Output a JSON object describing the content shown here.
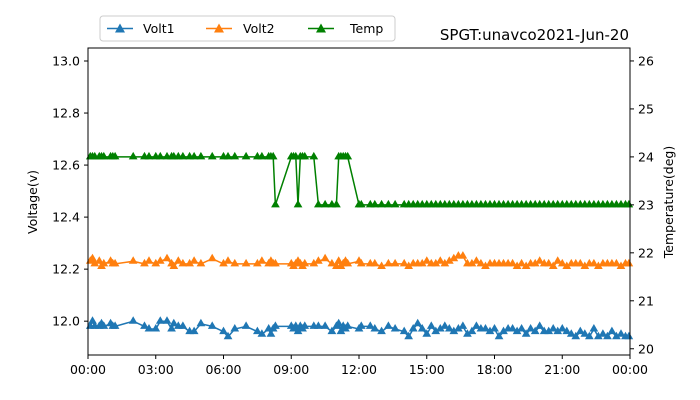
{
  "chart_data": {
    "type": "line",
    "title": "SPGT:unavco2021-Jun-20",
    "xlabel": "",
    "ylabel": "Voltage(v)",
    "y2label": "Temperature(deg)",
    "x_ticks": [
      "00:00",
      "03:00",
      "06:00",
      "09:00",
      "12:00",
      "15:00",
      "18:00",
      "21:00",
      "00:00"
    ],
    "x_range_hours": [
      0,
      24
    ],
    "ylim": [
      11.87,
      13.05
    ],
    "y_ticks": [
      "12.0",
      "12.2",
      "12.4",
      "12.6",
      "12.8",
      "13.0"
    ],
    "y2lim": [
      19.87,
      26.27
    ],
    "y2_ticks": [
      "20",
      "21",
      "22",
      "23",
      "24",
      "25",
      "26"
    ],
    "grid": false,
    "legend_position": "top-left, above plot",
    "x_hours": [
      0.1,
      0.2,
      0.3,
      0.5,
      0.6,
      0.7,
      1.0,
      1.1,
      1.2,
      2.0,
      2.5,
      2.7,
      3.0,
      3.2,
      3.5,
      3.7,
      3.8,
      4.0,
      4.2,
      4.5,
      4.7,
      5.0,
      5.5,
      6.0,
      6.2,
      6.5,
      7.0,
      7.5,
      7.7,
      8.0,
      8.1,
      8.2,
      8.3,
      9.0,
      9.1,
      9.2,
      9.3,
      9.4,
      9.5,
      9.6,
      10.0,
      10.2,
      10.5,
      10.8,
      11.0,
      11.1,
      11.2,
      11.3,
      11.4,
      11.5,
      12.0,
      12.1,
      12.5,
      12.7,
      13.0,
      13.3,
      13.6,
      14.0,
      14.2,
      14.4,
      14.6,
      14.8,
      15.0,
      15.2,
      15.4,
      15.6,
      15.8,
      16.0,
      16.2,
      16.4,
      16.6,
      16.8,
      17.0,
      17.2,
      17.4,
      17.6,
      17.8,
      18.0,
      18.2,
      18.4,
      18.6,
      18.8,
      19.0,
      19.2,
      19.4,
      19.6,
      19.8,
      20.0,
      20.2,
      20.4,
      20.6,
      20.8,
      21.0,
      21.2,
      21.4,
      21.6,
      21.8,
      22.0,
      22.2,
      22.4,
      22.6,
      22.8,
      23.0,
      23.2,
      23.4,
      23.6,
      23.8,
      23.95
    ],
    "series": [
      {
        "name": "Volt1",
        "axis": "left",
        "color": "#1f77b4",
        "marker": "triangle-up",
        "values": [
          11.98,
          12.0,
          11.98,
          11.98,
          11.99,
          11.98,
          11.99,
          11.98,
          11.98,
          12.0,
          11.98,
          11.97,
          11.97,
          12.0,
          12.0,
          11.97,
          11.99,
          11.98,
          11.98,
          11.96,
          11.96,
          11.99,
          11.98,
          11.96,
          11.94,
          11.97,
          11.98,
          11.96,
          11.95,
          11.97,
          11.95,
          11.97,
          11.98,
          11.98,
          11.97,
          11.98,
          11.96,
          11.98,
          11.97,
          11.98,
          11.98,
          11.98,
          11.98,
          11.96,
          11.98,
          11.99,
          11.96,
          11.98,
          11.97,
          11.98,
          11.97,
          11.98,
          11.98,
          11.97,
          11.96,
          11.98,
          11.97,
          11.96,
          11.94,
          11.97,
          11.99,
          11.97,
          11.95,
          11.98,
          11.96,
          11.97,
          11.98,
          11.97,
          11.96,
          11.97,
          11.98,
          11.95,
          11.96,
          11.98,
          11.97,
          11.97,
          11.96,
          11.97,
          11.94,
          11.96,
          11.97,
          11.97,
          11.96,
          11.97,
          11.95,
          11.97,
          11.96,
          11.98,
          11.96,
          11.96,
          11.97,
          11.96,
          11.97,
          11.96,
          11.95,
          11.94,
          11.96,
          11.95,
          11.94,
          11.97,
          11.94,
          11.95,
          11.94,
          11.96,
          11.94,
          11.95,
          11.94,
          11.94
        ]
      },
      {
        "name": "Volt2",
        "axis": "left",
        "color": "#ff7f0e",
        "marker": "triangle-up",
        "values": [
          12.23,
          12.24,
          12.22,
          12.23,
          12.21,
          12.22,
          12.23,
          12.22,
          12.22,
          12.23,
          12.22,
          12.23,
          12.22,
          12.23,
          12.24,
          12.22,
          12.21,
          12.23,
          12.22,
          12.22,
          12.23,
          12.22,
          12.24,
          12.22,
          12.23,
          12.22,
          12.22,
          12.22,
          12.23,
          12.22,
          12.23,
          12.22,
          12.22,
          12.22,
          12.21,
          12.22,
          12.23,
          12.22,
          12.21,
          12.22,
          12.22,
          12.23,
          12.24,
          12.22,
          12.21,
          12.23,
          12.21,
          12.22,
          12.23,
          12.22,
          12.23,
          12.22,
          12.22,
          12.22,
          12.21,
          12.22,
          12.22,
          12.22,
          12.21,
          12.22,
          12.22,
          12.22,
          12.23,
          12.22,
          12.22,
          12.23,
          12.22,
          12.23,
          12.24,
          12.25,
          12.25,
          12.22,
          12.22,
          12.23,
          12.22,
          12.21,
          12.22,
          12.22,
          12.22,
          12.22,
          12.22,
          12.22,
          12.21,
          12.22,
          12.21,
          12.22,
          12.22,
          12.23,
          12.22,
          12.22,
          12.21,
          12.23,
          12.22,
          12.21,
          12.22,
          12.22,
          12.22,
          12.21,
          12.22,
          12.22,
          12.21,
          12.22,
          12.22,
          12.22,
          12.22,
          12.21,
          12.22,
          12.22
        ]
      },
      {
        "name": "Temp",
        "axis": "right",
        "color": "#008000",
        "marker": "triangle-up",
        "values": [
          24,
          24,
          24,
          24,
          24,
          24,
          24,
          24,
          24,
          24,
          24,
          24,
          24,
          24,
          24,
          24,
          24,
          24,
          24,
          24,
          24,
          24,
          24,
          24,
          24,
          24,
          24,
          24,
          24,
          24,
          24,
          24,
          23,
          24,
          24,
          24,
          23,
          24,
          24,
          24,
          24,
          23,
          23,
          23,
          23,
          24,
          24,
          24,
          24,
          24,
          23,
          23,
          23,
          23,
          23,
          23,
          23,
          23,
          23,
          23,
          23,
          23,
          23,
          23,
          23,
          23,
          23,
          23,
          23,
          23,
          23,
          23,
          23,
          23,
          23,
          23,
          23,
          23,
          23,
          23,
          23,
          23,
          23,
          23,
          23,
          23,
          23,
          23,
          23,
          23,
          23,
          23,
          23,
          23,
          23,
          23,
          23,
          23,
          23,
          23,
          23,
          23,
          23,
          23,
          23,
          23,
          23,
          23
        ]
      }
    ]
  }
}
